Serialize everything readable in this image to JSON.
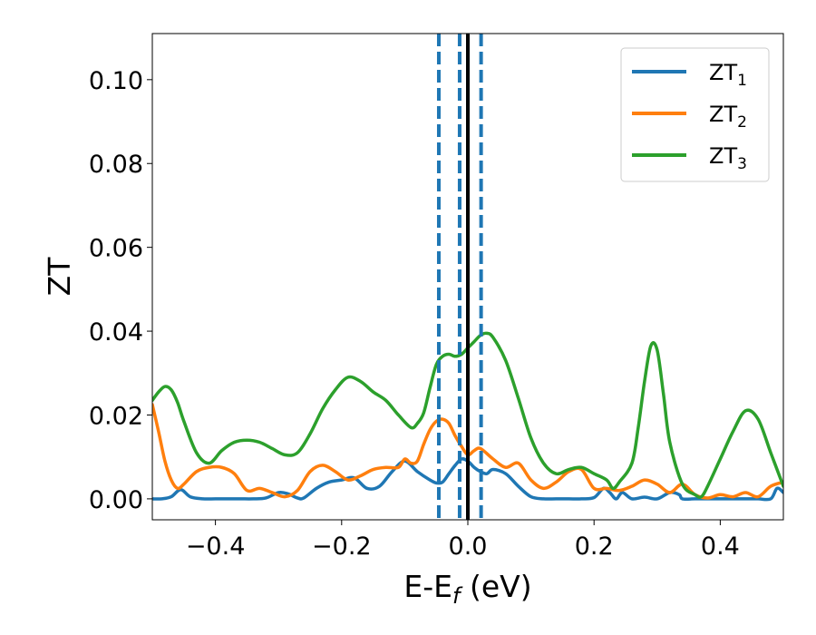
{
  "chart_data": {
    "type": "line",
    "title": "",
    "xlabel": "E-E",
    "xlabel_sub": "f",
    "xlabel_unit": " (eV)",
    "ylabel": "ZT",
    "xlim": [
      -0.5,
      0.5
    ],
    "ylim": [
      -0.005,
      0.111
    ],
    "xticks": [
      -0.4,
      -0.2,
      0.0,
      0.2,
      0.4
    ],
    "xtick_labels": [
      "−0.4",
      "−0.2",
      "0.0",
      "0.2",
      "0.4"
    ],
    "yticks": [
      0.0,
      0.02,
      0.04,
      0.06,
      0.08,
      0.1
    ],
    "ytick_labels": [
      "0.00",
      "0.02",
      "0.04",
      "0.06",
      "0.08",
      "0.10"
    ],
    "grid": false,
    "legend_position": "top-right",
    "vlines_solid": [
      0.0
    ],
    "vlines_dashed": [
      -0.046,
      -0.013,
      0.021
    ],
    "series": [
      {
        "name": "ZT",
        "name_sub": "1",
        "color": "#1f77b4",
        "x": [
          -0.5,
          -0.485,
          -0.47,
          -0.455,
          -0.44,
          -0.42,
          -0.4,
          -0.38,
          -0.36,
          -0.34,
          -0.32,
          -0.3,
          -0.285,
          -0.27,
          -0.26,
          -0.24,
          -0.22,
          -0.2,
          -0.18,
          -0.16,
          -0.14,
          -0.12,
          -0.1,
          -0.08,
          -0.06,
          -0.05,
          -0.04,
          -0.03,
          -0.02,
          -0.01,
          0.0,
          0.01,
          0.02,
          0.03,
          0.04,
          0.06,
          0.08,
          0.1,
          0.12,
          0.14,
          0.16,
          0.18,
          0.2,
          0.215,
          0.225,
          0.235,
          0.245,
          0.26,
          0.28,
          0.3,
          0.32,
          0.335,
          0.34,
          0.36,
          0.38,
          0.4,
          0.42,
          0.44,
          0.46,
          0.48,
          0.49,
          0.5
        ],
        "y": [
          0.0,
          0.0,
          0.0005,
          0.0022,
          0.0005,
          0.0,
          0.0,
          0.0,
          0.0,
          0.0,
          0.0002,
          0.0015,
          0.0012,
          0.0002,
          0.0002,
          0.0025,
          0.004,
          0.0045,
          0.005,
          0.0025,
          0.003,
          0.0065,
          0.009,
          0.0065,
          0.0045,
          0.0038,
          0.004,
          0.006,
          0.008,
          0.0095,
          0.009,
          0.0075,
          0.0065,
          0.006,
          0.007,
          0.006,
          0.003,
          0.0005,
          0.0,
          0.0,
          0.0,
          0.0,
          0.0003,
          0.0025,
          0.0015,
          0.0,
          0.0015,
          0.0,
          0.0004,
          0.0,
          0.0015,
          0.001,
          0.0,
          0.0,
          0.0,
          0.0,
          0.0,
          0.0,
          0.0,
          0.0,
          0.0025,
          0.0015
        ]
      },
      {
        "name": "ZT",
        "name_sub": "2",
        "color": "#ff7f0e",
        "x": [
          -0.5,
          -0.49,
          -0.48,
          -0.47,
          -0.46,
          -0.45,
          -0.43,
          -0.41,
          -0.39,
          -0.37,
          -0.35,
          -0.33,
          -0.31,
          -0.29,
          -0.27,
          -0.25,
          -0.23,
          -0.21,
          -0.19,
          -0.17,
          -0.15,
          -0.13,
          -0.11,
          -0.1,
          -0.09,
          -0.08,
          -0.07,
          -0.06,
          -0.05,
          -0.04,
          -0.03,
          -0.02,
          -0.01,
          0.0,
          0.01,
          0.02,
          0.04,
          0.06,
          0.08,
          0.1,
          0.12,
          0.14,
          0.16,
          0.18,
          0.2,
          0.22,
          0.24,
          0.26,
          0.28,
          0.3,
          0.32,
          0.34,
          0.36,
          0.38,
          0.4,
          0.42,
          0.44,
          0.46,
          0.48,
          0.5
        ],
        "y": [
          0.0225,
          0.016,
          0.009,
          0.0045,
          0.0025,
          0.0035,
          0.0065,
          0.0075,
          0.0075,
          0.006,
          0.002,
          0.0025,
          0.0015,
          0.0005,
          0.002,
          0.0065,
          0.008,
          0.0065,
          0.0045,
          0.0055,
          0.007,
          0.0075,
          0.0075,
          0.0095,
          0.0085,
          0.009,
          0.013,
          0.0165,
          0.0185,
          0.019,
          0.018,
          0.015,
          0.0125,
          0.0105,
          0.0115,
          0.012,
          0.0095,
          0.0075,
          0.0085,
          0.0045,
          0.0025,
          0.004,
          0.0065,
          0.007,
          0.0025,
          0.0025,
          0.002,
          0.003,
          0.0045,
          0.0035,
          0.0015,
          0.0035,
          0.001,
          0.0002,
          0.001,
          0.0005,
          0.0015,
          0.0005,
          0.003,
          0.004
        ]
      },
      {
        "name": "ZT",
        "name_sub": "3",
        "color": "#2ca02c",
        "x": [
          -0.5,
          -0.49,
          -0.48,
          -0.47,
          -0.46,
          -0.45,
          -0.43,
          -0.41,
          -0.39,
          -0.37,
          -0.35,
          -0.33,
          -0.31,
          -0.29,
          -0.27,
          -0.25,
          -0.23,
          -0.21,
          -0.19,
          -0.17,
          -0.15,
          -0.13,
          -0.11,
          -0.09,
          -0.08,
          -0.07,
          -0.06,
          -0.05,
          -0.04,
          -0.03,
          -0.02,
          -0.01,
          0.0,
          0.01,
          0.02,
          0.03,
          0.04,
          0.06,
          0.08,
          0.1,
          0.12,
          0.14,
          0.16,
          0.18,
          0.2,
          0.22,
          0.23,
          0.24,
          0.26,
          0.27,
          0.28,
          0.29,
          0.3,
          0.31,
          0.32,
          0.34,
          0.36,
          0.37,
          0.38,
          0.4,
          0.42,
          0.44,
          0.46,
          0.48,
          0.5
        ],
        "y": [
          0.0235,
          0.0255,
          0.0268,
          0.026,
          0.023,
          0.0185,
          0.011,
          0.0085,
          0.0115,
          0.0135,
          0.014,
          0.0135,
          0.012,
          0.0105,
          0.011,
          0.0155,
          0.0215,
          0.026,
          0.029,
          0.028,
          0.0255,
          0.0235,
          0.02,
          0.017,
          0.018,
          0.0205,
          0.0265,
          0.032,
          0.034,
          0.0345,
          0.034,
          0.0345,
          0.036,
          0.0375,
          0.039,
          0.0395,
          0.0385,
          0.033,
          0.024,
          0.0145,
          0.0085,
          0.006,
          0.007,
          0.0075,
          0.006,
          0.0045,
          0.0025,
          0.004,
          0.0085,
          0.017,
          0.028,
          0.0365,
          0.0355,
          0.025,
          0.0135,
          0.0035,
          0.001,
          0.0005,
          0.003,
          0.0095,
          0.016,
          0.021,
          0.019,
          0.011,
          0.003
        ]
      }
    ]
  }
}
